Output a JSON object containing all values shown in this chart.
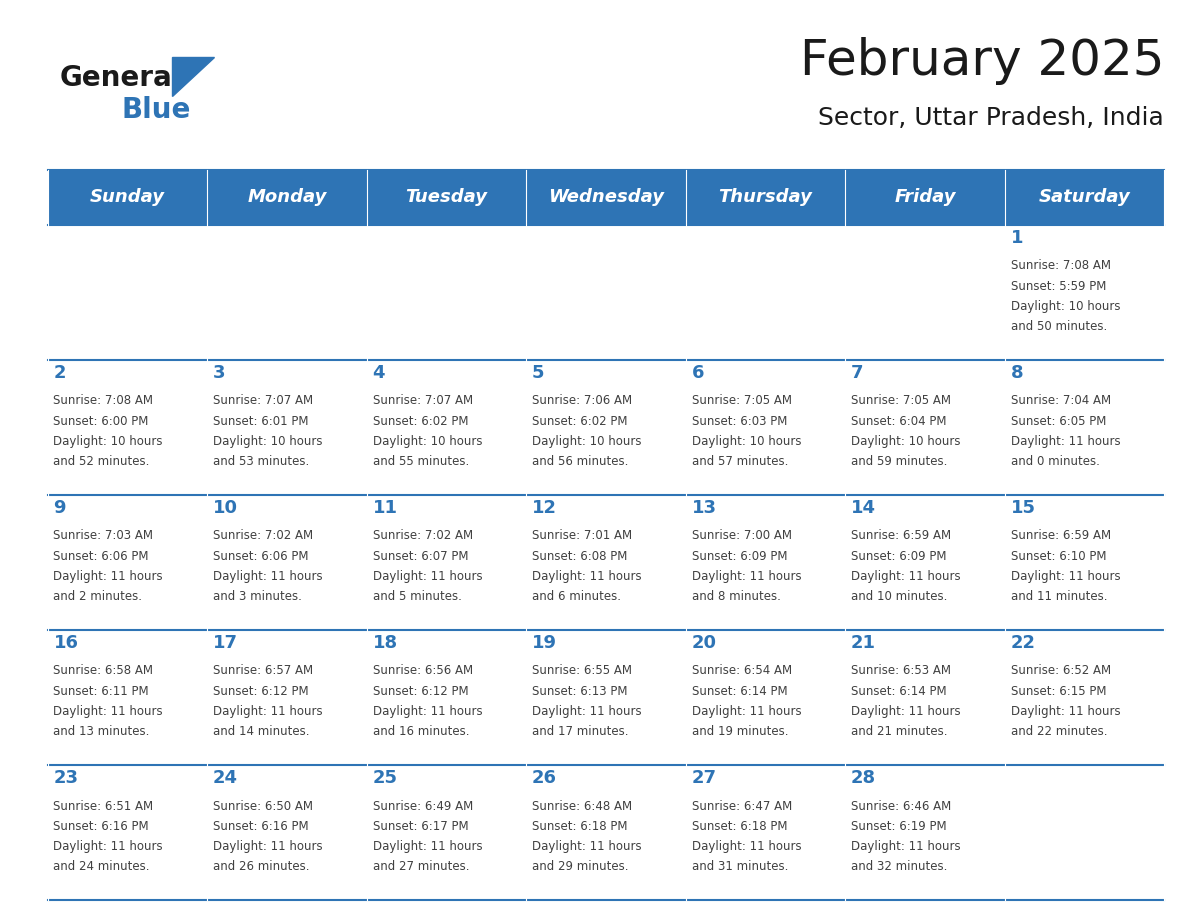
{
  "title": "February 2025",
  "subtitle": "Sector, Uttar Pradesh, India",
  "days_of_week": [
    "Sunday",
    "Monday",
    "Tuesday",
    "Wednesday",
    "Thursday",
    "Friday",
    "Saturday"
  ],
  "header_bg": "#2E74B5",
  "header_text": "#FFFFFF",
  "cell_bg_light": "#FFFFFF",
  "cell_bg_dark": "#F2F2F2",
  "border_color": "#2E74B5",
  "day_num_color": "#2E74B5",
  "text_color": "#404040",
  "title_color": "#1a1a1a",
  "logo_general_color": "#1a1a1a",
  "logo_blue_color": "#2E74B5",
  "weeks": [
    [
      {
        "day": null,
        "sunrise": null,
        "sunset": null,
        "daylight": null
      },
      {
        "day": null,
        "sunrise": null,
        "sunset": null,
        "daylight": null
      },
      {
        "day": null,
        "sunrise": null,
        "sunset": null,
        "daylight": null
      },
      {
        "day": null,
        "sunrise": null,
        "sunset": null,
        "daylight": null
      },
      {
        "day": null,
        "sunrise": null,
        "sunset": null,
        "daylight": null
      },
      {
        "day": null,
        "sunrise": null,
        "sunset": null,
        "daylight": null
      },
      {
        "day": 1,
        "sunrise": "7:08 AM",
        "sunset": "5:59 PM",
        "daylight": "10 hours\nand 50 minutes."
      }
    ],
    [
      {
        "day": 2,
        "sunrise": "7:08 AM",
        "sunset": "6:00 PM",
        "daylight": "10 hours\nand 52 minutes."
      },
      {
        "day": 3,
        "sunrise": "7:07 AM",
        "sunset": "6:01 PM",
        "daylight": "10 hours\nand 53 minutes."
      },
      {
        "day": 4,
        "sunrise": "7:07 AM",
        "sunset": "6:02 PM",
        "daylight": "10 hours\nand 55 minutes."
      },
      {
        "day": 5,
        "sunrise": "7:06 AM",
        "sunset": "6:02 PM",
        "daylight": "10 hours\nand 56 minutes."
      },
      {
        "day": 6,
        "sunrise": "7:05 AM",
        "sunset": "6:03 PM",
        "daylight": "10 hours\nand 57 minutes."
      },
      {
        "day": 7,
        "sunrise": "7:05 AM",
        "sunset": "6:04 PM",
        "daylight": "10 hours\nand 59 minutes."
      },
      {
        "day": 8,
        "sunrise": "7:04 AM",
        "sunset": "6:05 PM",
        "daylight": "11 hours\nand 0 minutes."
      }
    ],
    [
      {
        "day": 9,
        "sunrise": "7:03 AM",
        "sunset": "6:06 PM",
        "daylight": "11 hours\nand 2 minutes."
      },
      {
        "day": 10,
        "sunrise": "7:02 AM",
        "sunset": "6:06 PM",
        "daylight": "11 hours\nand 3 minutes."
      },
      {
        "day": 11,
        "sunrise": "7:02 AM",
        "sunset": "6:07 PM",
        "daylight": "11 hours\nand 5 minutes."
      },
      {
        "day": 12,
        "sunrise": "7:01 AM",
        "sunset": "6:08 PM",
        "daylight": "11 hours\nand 6 minutes."
      },
      {
        "day": 13,
        "sunrise": "7:00 AM",
        "sunset": "6:09 PM",
        "daylight": "11 hours\nand 8 minutes."
      },
      {
        "day": 14,
        "sunrise": "6:59 AM",
        "sunset": "6:09 PM",
        "daylight": "11 hours\nand 10 minutes."
      },
      {
        "day": 15,
        "sunrise": "6:59 AM",
        "sunset": "6:10 PM",
        "daylight": "11 hours\nand 11 minutes."
      }
    ],
    [
      {
        "day": 16,
        "sunrise": "6:58 AM",
        "sunset": "6:11 PM",
        "daylight": "11 hours\nand 13 minutes."
      },
      {
        "day": 17,
        "sunrise": "6:57 AM",
        "sunset": "6:12 PM",
        "daylight": "11 hours\nand 14 minutes."
      },
      {
        "day": 18,
        "sunrise": "6:56 AM",
        "sunset": "6:12 PM",
        "daylight": "11 hours\nand 16 minutes."
      },
      {
        "day": 19,
        "sunrise": "6:55 AM",
        "sunset": "6:13 PM",
        "daylight": "11 hours\nand 17 minutes."
      },
      {
        "day": 20,
        "sunrise": "6:54 AM",
        "sunset": "6:14 PM",
        "daylight": "11 hours\nand 19 minutes."
      },
      {
        "day": 21,
        "sunrise": "6:53 AM",
        "sunset": "6:14 PM",
        "daylight": "11 hours\nand 21 minutes."
      },
      {
        "day": 22,
        "sunrise": "6:52 AM",
        "sunset": "6:15 PM",
        "daylight": "11 hours\nand 22 minutes."
      }
    ],
    [
      {
        "day": 23,
        "sunrise": "6:51 AM",
        "sunset": "6:16 PM",
        "daylight": "11 hours\nand 24 minutes."
      },
      {
        "day": 24,
        "sunrise": "6:50 AM",
        "sunset": "6:16 PM",
        "daylight": "11 hours\nand 26 minutes."
      },
      {
        "day": 25,
        "sunrise": "6:49 AM",
        "sunset": "6:17 PM",
        "daylight": "11 hours\nand 27 minutes."
      },
      {
        "day": 26,
        "sunrise": "6:48 AM",
        "sunset": "6:18 PM",
        "daylight": "11 hours\nand 29 minutes."
      },
      {
        "day": 27,
        "sunrise": "6:47 AM",
        "sunset": "6:18 PM",
        "daylight": "11 hours\nand 31 minutes."
      },
      {
        "day": 28,
        "sunrise": "6:46 AM",
        "sunset": "6:19 PM",
        "daylight": "11 hours\nand 32 minutes."
      },
      {
        "day": null,
        "sunrise": null,
        "sunset": null,
        "daylight": null
      }
    ]
  ]
}
